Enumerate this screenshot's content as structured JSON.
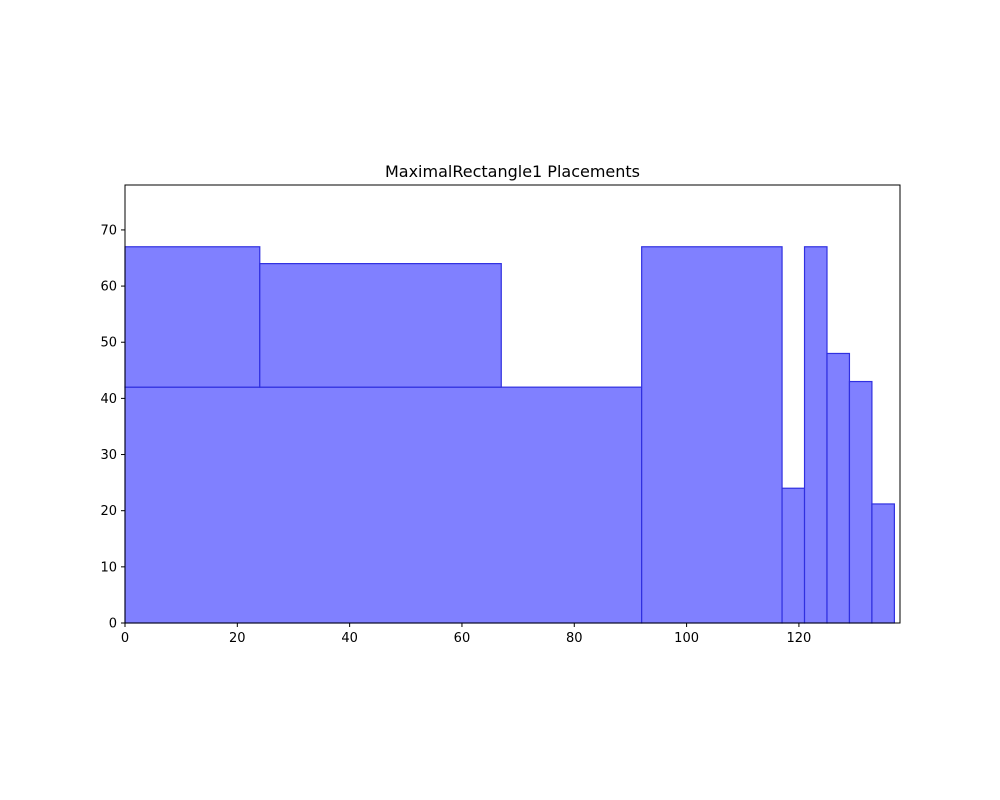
{
  "chart_data": {
    "type": "rectangles",
    "title": "MaximalRectangle1 Placements",
    "xlabel": "",
    "ylabel": "",
    "xlim": [
      0,
      138
    ],
    "ylim": [
      0,
      78
    ],
    "x_ticks": [
      0,
      20,
      40,
      60,
      80,
      100,
      120
    ],
    "y_ticks": [
      0,
      10,
      20,
      30,
      40,
      50,
      60,
      70
    ],
    "grid": false,
    "fill_color": "#8080ff",
    "edge_color": "#3030e0",
    "rectangles": [
      {
        "x": 0,
        "y": 0,
        "width": 92,
        "height": 42
      },
      {
        "x": 0,
        "y": 42,
        "width": 24,
        "height": 25
      },
      {
        "x": 24,
        "y": 42,
        "width": 43,
        "height": 22
      },
      {
        "x": 92,
        "y": 0,
        "width": 25,
        "height": 67
      },
      {
        "x": 117,
        "y": 0,
        "width": 4,
        "height": 24
      },
      {
        "x": 121,
        "y": 0,
        "width": 4,
        "height": 67
      },
      {
        "x": 125,
        "y": 0,
        "width": 4,
        "height": 48
      },
      {
        "x": 129,
        "y": 0,
        "width": 4,
        "height": 43
      },
      {
        "x": 133,
        "y": 0,
        "width": 4,
        "height": 21.2
      }
    ]
  }
}
